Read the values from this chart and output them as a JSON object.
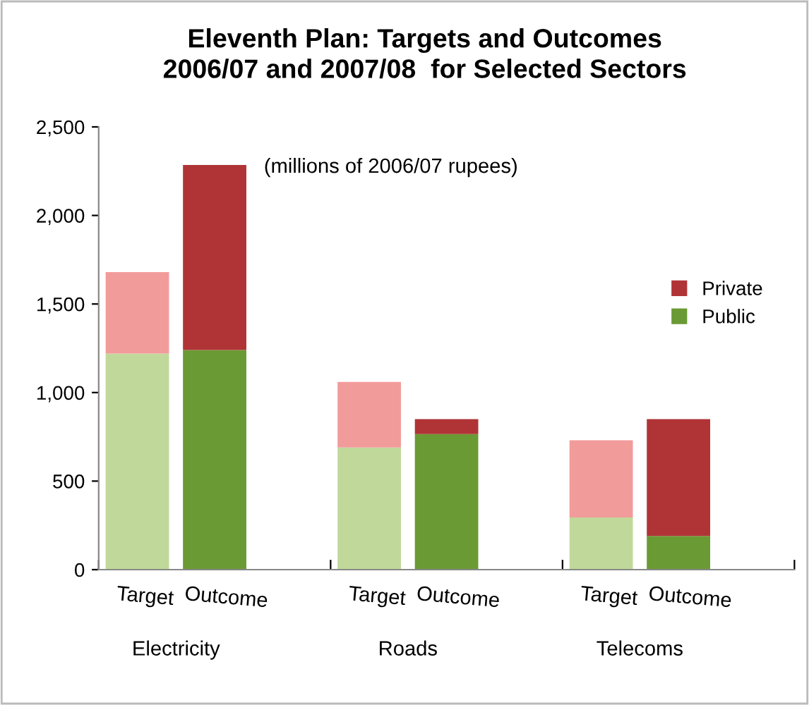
{
  "chart_data": {
    "type": "bar",
    "stacked": true,
    "title": "Eleventh Plan: Targets and Outcomes\n2006/07 and 2007/08  for Selected Sectors",
    "subtitle": "(millions of 2006/07 rupees)",
    "categories": [
      "Target",
      "Outcome",
      "Target",
      "Outcome",
      "Target",
      "Outcome"
    ],
    "annotations": [
      "Electricity",
      "Roads",
      "Telecoms"
    ],
    "series": [
      {
        "name": "Public",
        "color": "#6a9a34",
        "colors": [
          "#c0d99a",
          "#6a9a34",
          "#c0d99a",
          "#6a9a34",
          "#c0d99a",
          "#6a9a34"
        ],
        "values": [
          1220,
          1240,
          690,
          765,
          295,
          190
        ]
      },
      {
        "name": "Private",
        "color": "#b03436",
        "colors": [
          "#f29b9b",
          "#b03436",
          "#f29b9b",
          "#b03436",
          "#f29b9b",
          "#b03436"
        ],
        "values": [
          460,
          1045,
          370,
          85,
          435,
          660
        ]
      }
    ],
    "ylim": [
      0,
      2500
    ],
    "yticks": [
      {
        "value": 0,
        "label": "0"
      },
      {
        "value": 500,
        "label": "500"
      },
      {
        "value": 1000,
        "label": "1,000"
      },
      {
        "value": 1500,
        "label": "1,500"
      },
      {
        "value": 2000,
        "label": "2,000"
      },
      {
        "value": 2500,
        "label": "2,500"
      }
    ],
    "grid": false,
    "legend": "right"
  }
}
